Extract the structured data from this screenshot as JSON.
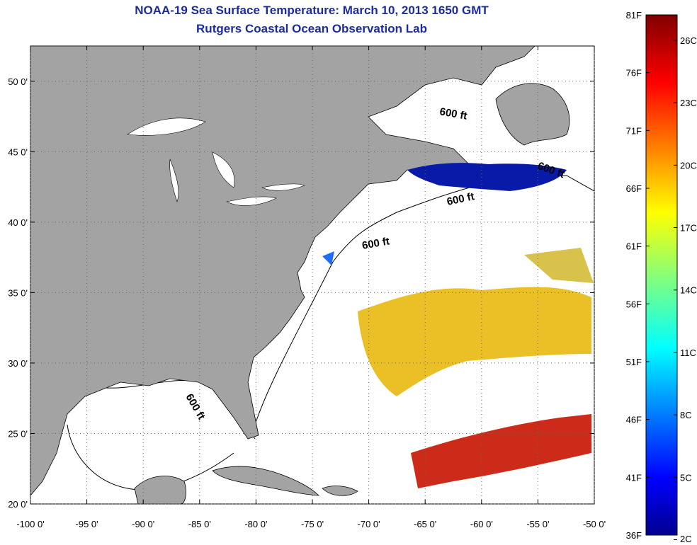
{
  "title": {
    "line1": "NOAA-19 Sea Surface Temperature:  March 10, 2013 1650 GMT",
    "line2": "Rutgers Coastal Ocean Observation Lab"
  },
  "axes": {
    "x_ticks": [
      -100,
      -95,
      -90,
      -85,
      -80,
      -75,
      -70,
      -65,
      -60,
      -55,
      -50
    ],
    "x_labels": [
      "-100 0'",
      "-95 0'",
      "-90 0'",
      "-85 0'",
      "-80 0'",
      "-75 0'",
      "-70 0'",
      "-65 0'",
      "-60 0'",
      "-55 0'",
      "-50 0'"
    ],
    "y_ticks": [
      20,
      25,
      30,
      35,
      40,
      45,
      50
    ],
    "y_labels": [
      "20 0'",
      "25 0'",
      "30 0'",
      "35 0'",
      "40 0'",
      "45 0'",
      "50 0'"
    ],
    "lon_range": [
      -100,
      -50
    ],
    "lat_range": [
      20,
      52.5
    ],
    "grid": "dotted"
  },
  "isobath_labels": [
    "600 ft",
    "600 ft",
    "600 ft",
    "600 ft",
    "600 ft"
  ],
  "colorbar": {
    "f_labels": [
      "81F",
      "76F",
      "71F",
      "66F",
      "61F",
      "56F",
      "51F",
      "46F",
      "41F",
      "36F"
    ],
    "c_labels": [
      "26C",
      "23C",
      "20C",
      "17C",
      "14C",
      "11C",
      "8C",
      "5C",
      "2C"
    ],
    "range_f": [
      36,
      81
    ],
    "colormap": "jet"
  },
  "colors": {
    "land": "#a3a3a3",
    "title": "#1b2ca0",
    "cold": "#00008c",
    "warm": "#e8b400",
    "hot": "#c81400"
  }
}
